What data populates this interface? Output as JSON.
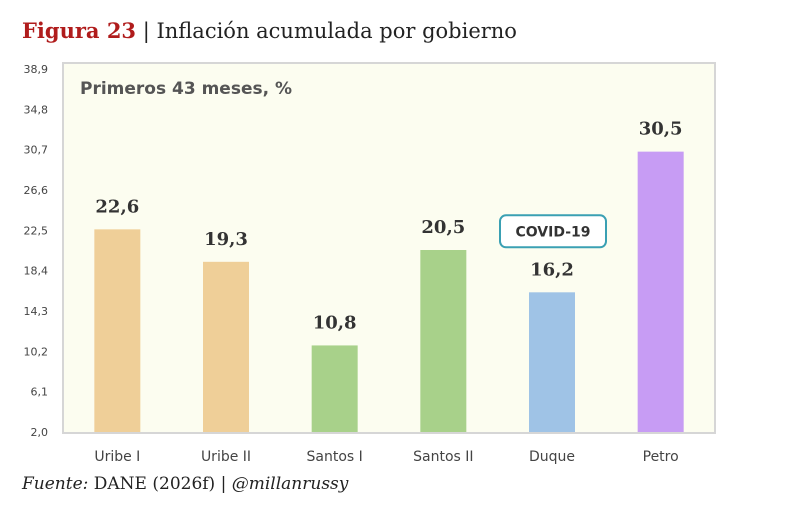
{
  "header": {
    "figure_label": "Figura 23",
    "separator": " | ",
    "title_text": "Inflación acumulada por gobierno"
  },
  "footer": {
    "source_label": "Fuente:",
    "source_text": " DANE (2026f) | ",
    "handle": "@millanrussy"
  },
  "chart_data": {
    "type": "bar",
    "title": "Primeros 43 meses, %",
    "categories": [
      "Uribe I",
      "Uribe II",
      "Santos I",
      "Santos II",
      "Duque",
      "Petro"
    ],
    "values": [
      22.6,
      19.3,
      10.8,
      20.5,
      16.2,
      30.5
    ],
    "value_labels": [
      "22,6",
      "19,3",
      "10,8",
      "20,5",
      "16,2",
      "30,5"
    ],
    "bar_colors": [
      "#efcf98",
      "#efcf98",
      "#a8d18a",
      "#a8d18a",
      "#9fc3e6",
      "#c79cf4"
    ],
    "ylim": [
      2.0,
      38.9
    ],
    "yticks": [
      2.0,
      6.1,
      10.2,
      14.3,
      18.4,
      22.5,
      26.6,
      30.7,
      34.8,
      38.9
    ],
    "ytick_labels": [
      "2,0",
      "6,1",
      "10,2",
      "14,3",
      "18,4",
      "22,5",
      "26,6",
      "30,7",
      "34,8",
      "38,9"
    ],
    "xlabel": "",
    "ylabel": "",
    "annotation": {
      "text": "COVID-19",
      "category": "Duque"
    },
    "colors": {
      "plot_background": "#fcfdf0",
      "plot_border": "#d6d6d6",
      "annotation_border": "#3aa0b3"
    }
  }
}
